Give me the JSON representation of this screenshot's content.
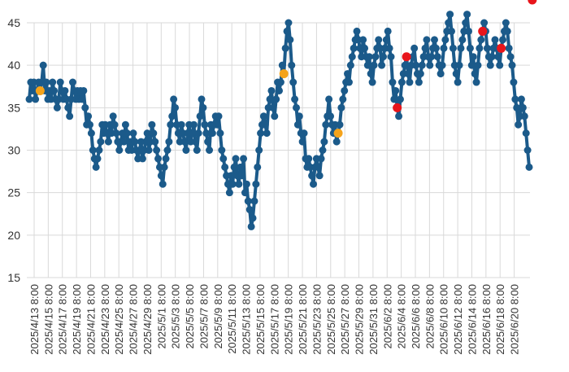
{
  "chart_data": {
    "type": "line",
    "title": "",
    "xlabel": "",
    "ylabel": "",
    "ylim": [
      15,
      45
    ],
    "y_ticks": [
      15,
      20,
      25,
      30,
      35,
      40,
      45
    ],
    "x_tick_labels": [
      "2025/4/13 8:00",
      "2025/4/15 8:00",
      "2025/4/17 8:00",
      "2025/4/19 8:00",
      "2025/4/21 8:00",
      "2025/4/23 8:00",
      "2025/4/25 8:00",
      "2025/4/27 8:00",
      "2025/4/29 8:00",
      "2025/5/1 8:00",
      "2025/5/3 8:00",
      "2025/5/5 8:00",
      "2025/5/7 8:00",
      "2025/5/9 8:00",
      "2025/5/11 8:00",
      "2025/5/13 8:00",
      "2025/5/15 8:00",
      "2025/5/17 8:00",
      "2025/5/19 8:00",
      "2025/5/21 8:00",
      "2025/5/23 8:00",
      "2025/5/25 8:00",
      "2025/5/27 8:00",
      "2025/5/29 8:00",
      "2025/5/31 8:00",
      "2025/6/2 8:00",
      "2025/6/4 8:00",
      "2025/6/6 8:00",
      "2025/6/8 8:00",
      "2025/6/10 8:00",
      "2025/6/12 8:00",
      "2025/6/14 8:00",
      "2025/6/16 8:00",
      "2025/6/18 8:00",
      "2025/6/20 8:00"
    ],
    "grid": true,
    "colors": {
      "line": "#1b5a8a",
      "marker": "#1b5a8a",
      "orange": "#f5a31a",
      "red": "#e8151b",
      "grid": "#d9d9d9"
    },
    "series": [
      {
        "values": [
          36,
          38,
          37,
          38,
          36,
          37,
          38,
          37,
          38,
          40,
          37,
          38,
          36,
          37,
          36,
          38,
          37,
          36,
          35,
          36,
          38,
          37,
          36,
          37,
          36,
          35,
          34,
          36,
          38,
          37,
          36,
          37,
          36,
          37,
          36,
          37,
          35,
          33,
          34,
          33,
          32,
          30,
          29,
          28,
          29,
          30,
          31,
          33,
          32,
          33,
          32,
          31,
          33,
          32,
          34,
          33,
          32,
          31,
          30,
          31,
          32,
          31,
          33,
          32,
          30,
          31,
          30,
          32,
          31,
          30,
          29,
          30,
          31,
          29,
          30,
          31,
          32,
          30,
          31,
          33,
          32,
          31,
          30,
          29,
          28,
          27,
          26,
          28,
          29,
          30,
          31,
          33,
          34,
          36,
          35,
          33,
          32,
          31,
          33,
          32,
          31,
          30,
          32,
          33,
          31,
          32,
          33,
          31,
          30,
          32,
          34,
          36,
          35,
          33,
          32,
          31,
          30,
          33,
          32,
          33,
          34,
          33,
          34,
          32,
          30,
          29,
          28,
          27,
          26,
          25,
          27,
          26,
          28,
          29,
          27,
          26,
          28,
          27,
          29,
          25,
          26,
          24,
          23,
          21,
          22,
          24,
          26,
          28,
          30,
          32,
          33,
          34,
          33,
          32,
          35,
          36,
          37,
          35,
          34,
          36,
          38,
          37,
          38,
          40,
          39,
          42,
          44,
          45,
          43,
          40,
          38,
          36,
          35,
          33,
          34,
          32,
          31,
          32,
          29,
          28,
          29,
          28,
          27,
          26,
          28,
          29,
          28,
          27,
          29,
          30,
          31,
          33,
          34,
          36,
          34,
          33,
          32,
          33,
          31,
          32,
          33,
          35,
          36,
          37,
          38,
          39,
          38,
          40,
          41,
          42,
          43,
          44,
          43,
          42,
          41,
          43,
          42,
          41,
          40,
          41,
          39,
          38,
          40,
          41,
          42,
          43,
          42,
          40,
          41,
          42,
          43,
          44,
          42,
          41,
          38,
          36,
          37,
          35,
          34,
          36,
          38,
          39,
          40,
          41,
          39,
          38,
          40,
          41,
          42,
          40,
          39,
          38,
          39,
          40,
          41,
          42,
          43,
          41,
          40,
          41,
          42,
          43,
          42,
          41,
          40,
          39,
          40,
          42,
          43,
          44,
          45,
          46,
          44,
          42,
          40,
          39,
          38,
          40,
          42,
          43,
          44,
          45,
          46,
          44,
          42,
          40,
          41,
          39,
          38,
          40,
          42,
          43,
          44,
          45,
          44,
          42,
          41,
          40,
          41,
          42,
          43,
          42,
          41,
          40,
          42,
          43,
          44,
          45,
          44,
          42,
          41,
          40,
          38,
          36,
          35,
          33,
          34,
          36,
          35,
          34,
          32,
          30,
          28
        ],
        "markers": [
          {
            "index": 7,
            "color": "orange"
          },
          {
            "index": 164,
            "color": "orange"
          },
          {
            "index": 199,
            "color": "orange"
          },
          {
            "index": 237,
            "color": "red"
          },
          {
            "index": 243,
            "color": "red"
          },
          {
            "index": 292,
            "color": "red"
          },
          {
            "index": 304,
            "color": "red"
          },
          {
            "index": 324,
            "color": "red"
          }
        ]
      }
    ]
  }
}
